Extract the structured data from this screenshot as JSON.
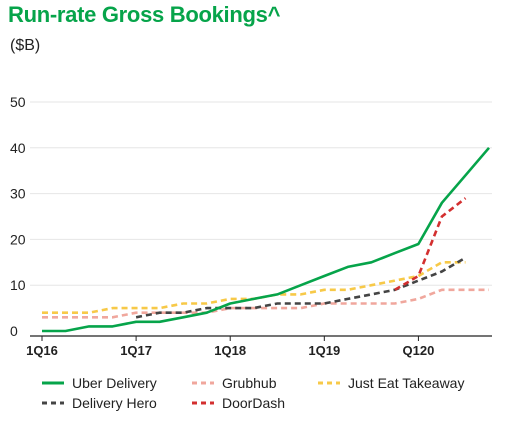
{
  "header": {
    "title": "Run-rate Gross Bookings^",
    "subtitle": "($B)"
  },
  "chart_data": {
    "type": "line",
    "title": "Run-rate Gross Bookings^",
    "subtitle": "($B)",
    "xlabel": "",
    "ylabel": "",
    "ylim": [
      0,
      50
    ],
    "yticks": [
      0,
      10,
      20,
      30,
      40,
      50
    ],
    "x": [
      "1Q16",
      "2Q16",
      "3Q16",
      "4Q16",
      "1Q17",
      "2Q17",
      "3Q17",
      "4Q17",
      "1Q18",
      "2Q18",
      "3Q18",
      "4Q18",
      "1Q19",
      "2Q19",
      "3Q19",
      "4Q19",
      "Q120",
      "2Q20",
      "3Q20",
      "4Q20"
    ],
    "xtick_labels": [
      "1Q16",
      "1Q17",
      "1Q18",
      "1Q19",
      "Q120"
    ],
    "xtick_indices": [
      0,
      4,
      8,
      12,
      16
    ],
    "grid": true,
    "legend_position": "bottom",
    "series": [
      {
        "name": "Uber Delivery",
        "color": "#06a44a",
        "dash": "solid",
        "values": [
          0,
          0,
          1,
          1,
          2,
          2,
          3,
          4,
          6,
          7,
          8,
          10,
          12,
          14,
          15,
          17,
          19,
          28,
          34,
          40
        ]
      },
      {
        "name": "Delivery Hero",
        "color": "#444444",
        "dash": "dashed",
        "values": [
          null,
          null,
          null,
          null,
          3,
          4,
          4,
          5,
          5,
          5,
          6,
          6,
          6,
          7,
          8,
          9,
          11,
          13,
          16,
          null
        ]
      },
      {
        "name": "Grubhub",
        "color": "#f0a79d",
        "dash": "dashed",
        "values": [
          3,
          3,
          3,
          3,
          4,
          4,
          4,
          4,
          5,
          5,
          5,
          5,
          6,
          6,
          6,
          6,
          7,
          9,
          9,
          9
        ]
      },
      {
        "name": "DoorDash",
        "color": "#d32f2f",
        "dash": "dashed",
        "values": [
          null,
          null,
          null,
          null,
          null,
          null,
          null,
          null,
          null,
          null,
          null,
          null,
          null,
          null,
          null,
          9,
          12,
          25,
          29,
          null
        ]
      },
      {
        "name": "Just Eat Takeaway",
        "color": "#f7c948",
        "dash": "dashed",
        "values": [
          4,
          4,
          4,
          5,
          5,
          5,
          6,
          6,
          7,
          7,
          8,
          8,
          9,
          9,
          10,
          11,
          12,
          15,
          15,
          null
        ]
      }
    ]
  }
}
